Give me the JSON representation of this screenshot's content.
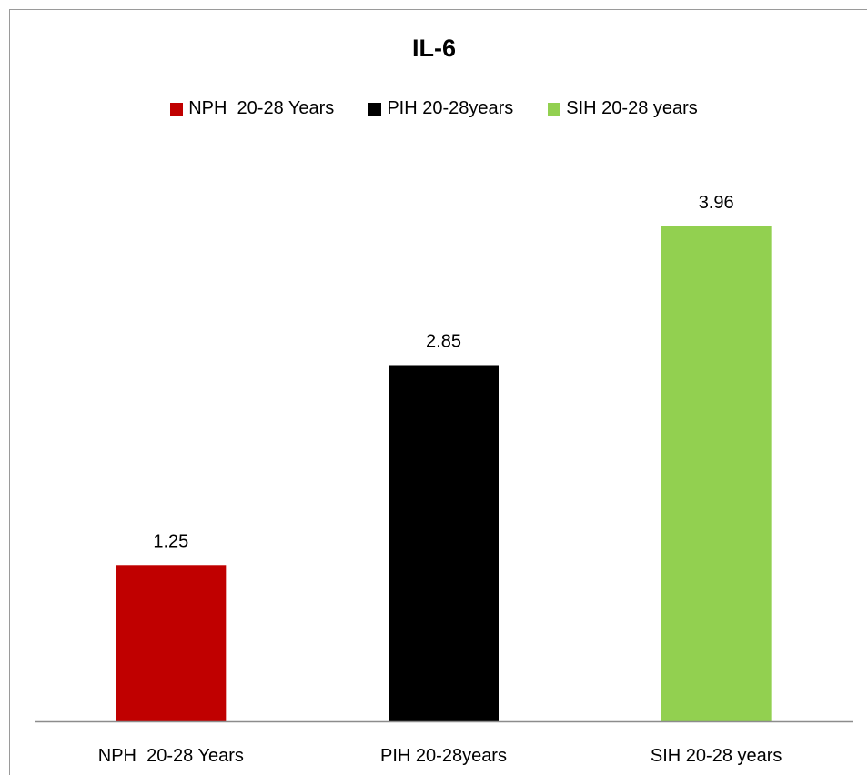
{
  "chart_data": {
    "type": "bar",
    "title": "IL-6",
    "categories": [
      "NPH  20-28 Years",
      "PIH 20-28years",
      "SIH 20-28 years"
    ],
    "series": [
      {
        "name": "NPH  20-28 Years",
        "values": [
          1.25,
          null,
          null
        ],
        "color": "#c00000"
      },
      {
        "name": "PIH 20-28years",
        "values": [
          null,
          2.85,
          null
        ],
        "color": "#000000"
      },
      {
        "name": "SIH 20-28 years",
        "values": [
          null,
          null,
          3.96
        ],
        "color": "#92d050"
      }
    ],
    "values": [
      1.25,
      2.85,
      3.96
    ],
    "data_labels": [
      "1.25",
      "2.85",
      "3.96"
    ],
    "xlabel": "",
    "ylabel": "",
    "ylim": [
      0,
      4.5
    ],
    "grid": false,
    "legend_position": "top"
  }
}
